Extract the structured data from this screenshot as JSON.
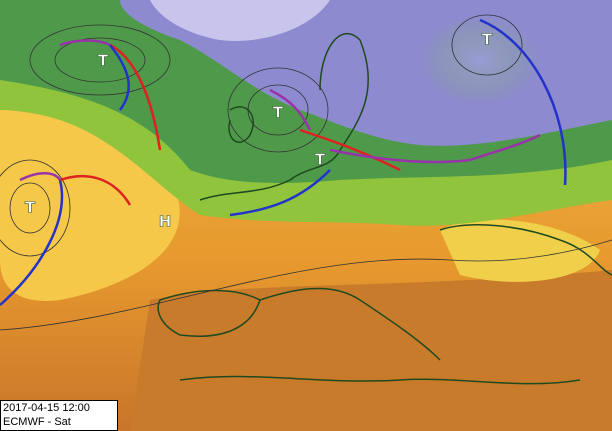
{
  "timestamp": "2017-04-15 12:00",
  "source": "ECMWF - Sat",
  "pressure_labels": [
    "T",
    "T",
    "T",
    "T",
    "H",
    "T"
  ]
}
